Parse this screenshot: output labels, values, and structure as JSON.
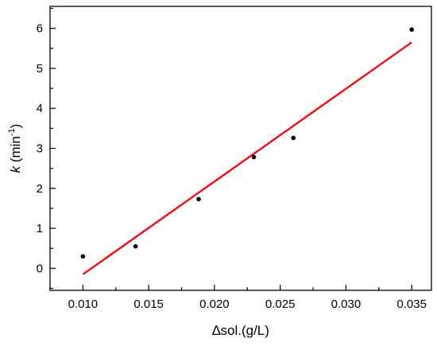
{
  "chart_data": {
    "type": "scatter",
    "title": "",
    "xlabel": "∆sol.(g/L)",
    "ylabel": {
      "symbol": "k",
      "unit_open": " (min",
      "unit_exp": "-1",
      "unit_close": ")"
    },
    "xlim": [
      0.0075,
      0.0365
    ],
    "ylim": [
      -0.55,
      6.55
    ],
    "x_ticks": [
      0.01,
      0.015,
      0.02,
      0.025,
      0.03,
      0.035
    ],
    "x_tick_labels": [
      "0.010",
      "0.015",
      "0.020",
      "0.025",
      "0.030",
      "0.035"
    ],
    "y_ticks": [
      0,
      1,
      2,
      3,
      4,
      5,
      6
    ],
    "y_tick_labels": [
      "0",
      "1",
      "2",
      "3",
      "4",
      "5",
      "6"
    ],
    "grid": false,
    "series": [
      {
        "points": [
          {
            "x": 0.01,
            "y": 0.3
          },
          {
            "x": 0.014,
            "y": 0.55
          },
          {
            "x": 0.0188,
            "y": 1.73
          },
          {
            "x": 0.023,
            "y": 2.78
          },
          {
            "x": 0.026,
            "y": 3.26
          },
          {
            "x": 0.035,
            "y": 5.97
          }
        ],
        "color": "#000000"
      }
    ],
    "fit_line": {
      "color": "#e8161c",
      "x": [
        0.01,
        0.035
      ],
      "y": [
        -0.15,
        5.65
      ]
    }
  }
}
